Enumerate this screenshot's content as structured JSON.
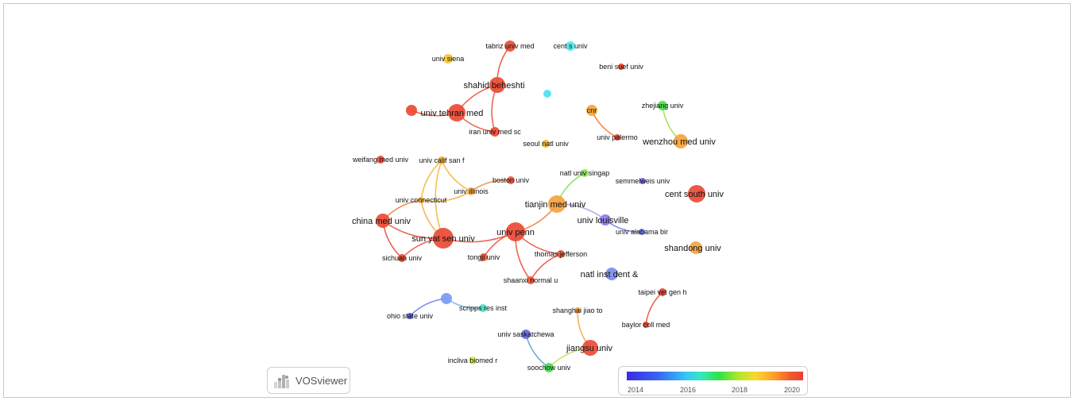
{
  "nodes": {
    "tabriz": {
      "label": "tabriz univ med",
      "color": "#ea4f35"
    },
    "cent_s": {
      "label": "cent s univ",
      "color": "#4fe8ee"
    },
    "siena": {
      "label": "univ siena",
      "color": "#f4c534"
    },
    "beni_suef": {
      "label": "beni suef univ",
      "color": "#e8442e"
    },
    "shahid": {
      "label": "shahid beheshti",
      "color": "#ea4a35"
    },
    "unlabeled_cyan": {
      "label": "",
      "color": "#4fe0f2"
    },
    "tehran": {
      "label": "univ tehran med",
      "color": "#ea4a35"
    },
    "tehran_left": {
      "label": "",
      "color": "#ea4a35"
    },
    "cnr": {
      "label": "cnr",
      "color": "#f3a738"
    },
    "zhejiang": {
      "label": "zhejiang univ",
      "color": "#45e24e"
    },
    "iran": {
      "label": "iran univ med sc",
      "color": "#ea4a35"
    },
    "palermo": {
      "label": "univ palermo",
      "color": "#e8442e"
    },
    "wenzhou": {
      "label": "wenzhou med univ",
      "color": "#f5a440"
    },
    "seoul": {
      "label": "seoul natl univ",
      "color": "#f2b62c"
    },
    "weifang": {
      "label": "weifang med univ",
      "color": "#e8442e"
    },
    "calif_sf": {
      "label": "univ calif san f",
      "color": "#f5b53a"
    },
    "natl_singap": {
      "label": "natl univ singap",
      "color": "#86e65a"
    },
    "boston": {
      "label": "boston univ",
      "color": "#ea5240"
    },
    "semmelweis": {
      "label": "semmelweis univ",
      "color": "#7468e8"
    },
    "illinois": {
      "label": "univ illinois",
      "color": "#f4a840"
    },
    "cent_south": {
      "label": "cent south univ",
      "color": "#ea4a35"
    },
    "connecticut": {
      "label": "univ connecticut",
      "color": "#f3b136"
    },
    "tianjin": {
      "label": "tianjin med univ",
      "color": "#f5a240"
    },
    "china_med": {
      "label": "china med univ",
      "color": "#ea4a35"
    },
    "louisville": {
      "label": "univ louisville",
      "color": "#8a7de8"
    },
    "alabama": {
      "label": "univ alabama bir",
      "color": "#6a78e8"
    },
    "upenn": {
      "label": "univ penn",
      "color": "#ea4a35"
    },
    "sun_yat": {
      "label": "sun yat sen univ",
      "color": "#ea4a35"
    },
    "shandong": {
      "label": "shandong univ",
      "color": "#f5a440"
    },
    "sichuan": {
      "label": "sichuan univ",
      "color": "#e8442e"
    },
    "tongji": {
      "label": "tongji univ",
      "color": "#ea5238"
    },
    "jefferson": {
      "label": "thomas jefferson",
      "color": "#ea5238"
    },
    "natl_inst_dent": {
      "label": "natl inst dent &",
      "color": "#7a8cf0"
    },
    "shaanxi": {
      "label": "shaanxi normal u",
      "color": "#ea5238"
    },
    "taipei": {
      "label": "taipei vet gen h",
      "color": "#e8442e"
    },
    "scripps_blue": {
      "label": "",
      "color": "#7a9af5"
    },
    "scripps": {
      "label": "scripps res inst",
      "color": "#45e2c4"
    },
    "ohio": {
      "label": "ohio state univ",
      "color": "#5a5ae8"
    },
    "shanghai": {
      "label": "shanghai jiao to",
      "color": "#f5a440"
    },
    "baylor": {
      "label": "baylor coll med",
      "color": "#e8442e"
    },
    "saskatchewan": {
      "label": "univ saskatchewa",
      "color": "#6a6ae8"
    },
    "jiangsu": {
      "label": "jiangsu univ",
      "color": "#ea4a35"
    },
    "incliva": {
      "label": "incliva biomed r",
      "color": "#d8f04a"
    },
    "soochow": {
      "label": "soochow univ",
      "color": "#45e24e"
    }
  },
  "links": [
    {
      "a": "tabriz",
      "b": "shahid",
      "color": "#ea4a35"
    },
    {
      "a": "shahid",
      "b": "tehran",
      "color": "#ea4a35"
    },
    {
      "a": "shahid",
      "b": "iran",
      "color": "#ea4a35"
    },
    {
      "a": "tehran",
      "b": "iran",
      "color": "#ea4a35"
    },
    {
      "a": "tehran_left",
      "b": "tehran",
      "color": "#ea4a35"
    },
    {
      "a": "cnr",
      "b": "palermo",
      "color": "#f07a30"
    },
    {
      "a": "zhejiang",
      "b": "wenzhou",
      "color": "#9ee040"
    },
    {
      "a": "calif_sf",
      "b": "connecticut",
      "color": "#f5b53a"
    },
    {
      "a": "calif_sf",
      "b": "illinois",
      "color": "#f5b53a"
    },
    {
      "a": "calif_sf",
      "b": "sun_yat",
      "color": "#f5b53a"
    },
    {
      "a": "boston",
      "b": "illinois",
      "color": "#f08a40"
    },
    {
      "a": "connecticut",
      "b": "illinois",
      "color": "#f5b040"
    },
    {
      "a": "connecticut",
      "b": "china_med",
      "color": "#f07a35"
    },
    {
      "a": "connecticut",
      "b": "sun_yat",
      "color": "#f5a840"
    },
    {
      "a": "china_med",
      "b": "sun_yat",
      "color": "#ea4a35"
    },
    {
      "a": "china_med",
      "b": "sichuan",
      "color": "#ea4a35"
    },
    {
      "a": "sun_yat",
      "b": "sichuan",
      "color": "#ea4a35"
    },
    {
      "a": "sun_yat",
      "b": "upenn",
      "color": "#ea4a35"
    },
    {
      "a": "upenn",
      "b": "tianjin",
      "color": "#f07a35"
    },
    {
      "a": "upenn",
      "b": "tongji",
      "color": "#ea4a35"
    },
    {
      "a": "upenn",
      "b": "jefferson",
      "color": "#ea4a35"
    },
    {
      "a": "upenn",
      "b": "shaanxi",
      "color": "#ea4a35"
    },
    {
      "a": "jefferson",
      "b": "shaanxi",
      "color": "#ea4a35"
    },
    {
      "a": "natl_singap",
      "b": "tianjin",
      "color": "#7ee050"
    },
    {
      "a": "louisville",
      "b": "alabama",
      "color": "#6a78e8"
    },
    {
      "a": "louisville",
      "b": "tianjin",
      "color": "#b09ad8"
    },
    {
      "a": "taipei",
      "b": "baylor",
      "color": "#ea4a35"
    },
    {
      "a": "scripps_blue",
      "b": "scripps",
      "color": "#6ab8e8"
    },
    {
      "a": "scripps_blue",
      "b": "ohio",
      "color": "#6a78e8"
    },
    {
      "a": "shanghai",
      "b": "jiangsu",
      "color": "#f5a440"
    },
    {
      "a": "saskatchewan",
      "b": "soochow",
      "color": "#5aa0c8"
    },
    {
      "a": "jiangsu",
      "b": "soochow",
      "color": "#b8e050"
    }
  ],
  "logo": {
    "text": "VOSviewer"
  },
  "legend": {
    "ticks": [
      "2014",
      "2016",
      "2018",
      "2020"
    ]
  }
}
